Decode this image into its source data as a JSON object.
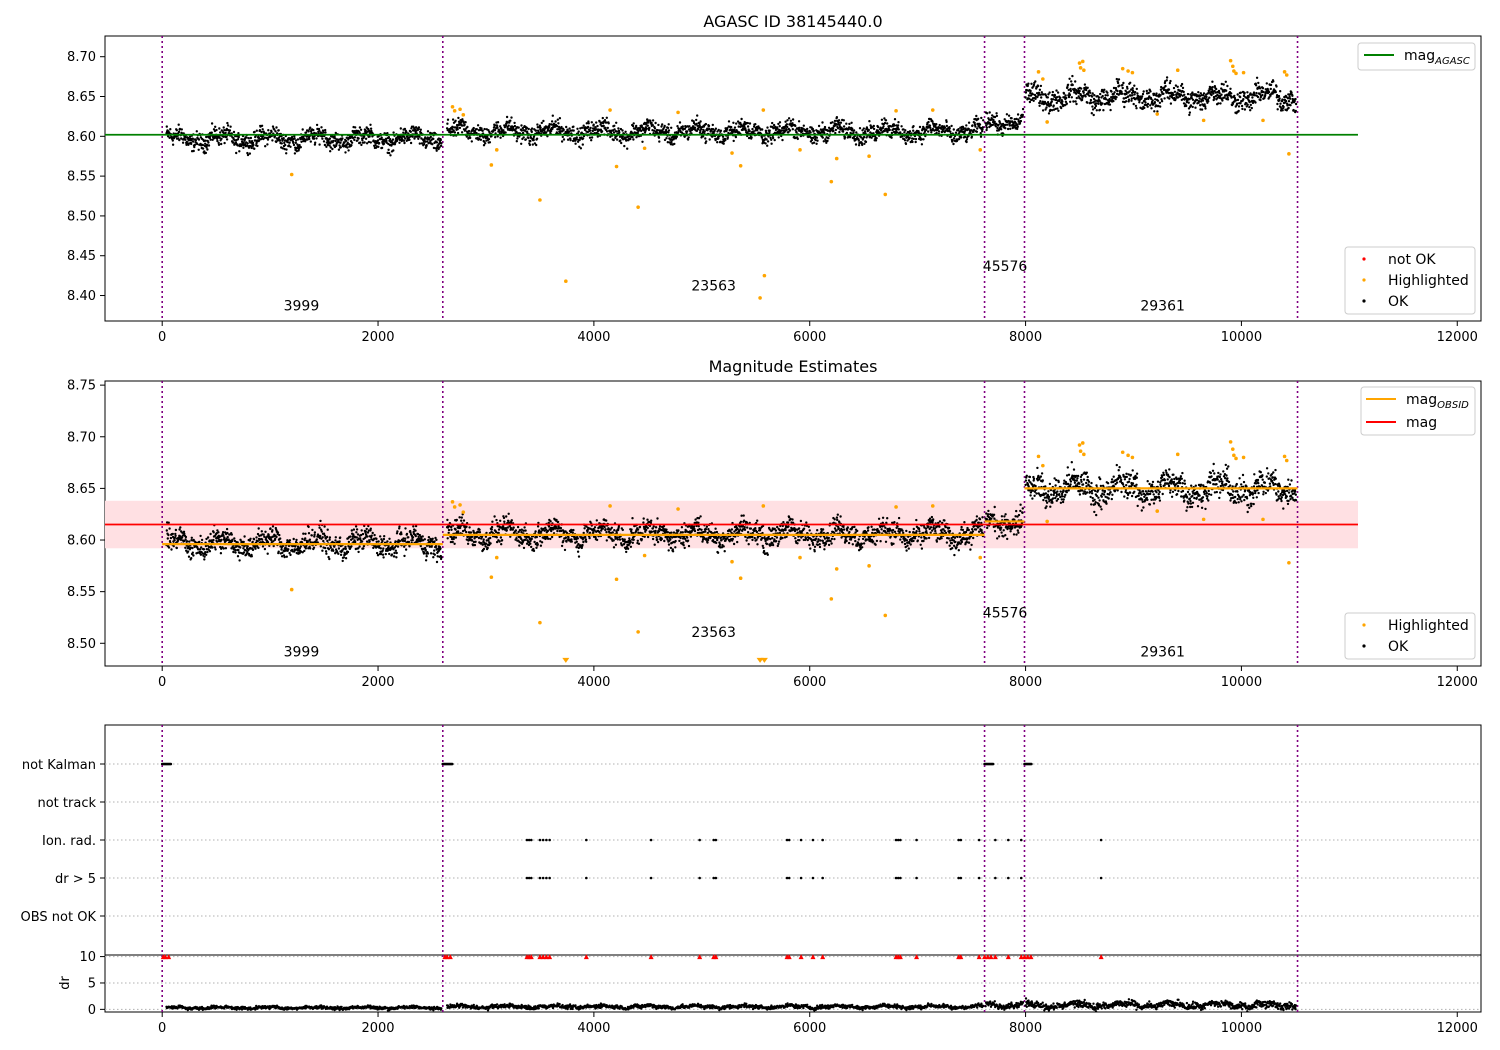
{
  "chart_data": [
    {
      "type": "scatter",
      "title": "AGASC ID 38145440.0",
      "xlim": [
        -530,
        12220
      ],
      "ylim": [
        8.368,
        8.726
      ],
      "xticks": [
        0,
        2000,
        4000,
        6000,
        8000,
        10000,
        12000
      ],
      "yticks": [
        8.4,
        8.45,
        8.5,
        8.55,
        8.6,
        8.65,
        8.7
      ],
      "ytick_labels": [
        "8.40",
        "8.45",
        "8.50",
        "8.55",
        "8.60",
        "8.65",
        "8.70"
      ],
      "obs_boundaries": [
        0,
        2600,
        7620,
        7990,
        10520
      ],
      "obs_labels": [
        {
          "text": "3999",
          "x": 1290,
          "y": 8.381
        },
        {
          "text": "23563",
          "x": 5110,
          "y": 8.406
        },
        {
          "text": "45576",
          "x": 7810,
          "y": 8.431
        },
        {
          "text": "29361",
          "x": 9270,
          "y": 8.381
        }
      ],
      "series": [
        {
          "name": "mag_AGASC",
          "kind": "hline",
          "y": 8.602,
          "x_range": [
            -530,
            11080
          ],
          "color": "#008000"
        },
        {
          "name": "OK",
          "kind": "band-scatter",
          "color": "#000000",
          "segments": [
            {
              "x": [
                40,
                2590
              ],
              "center": 8.597,
              "amplitude": 0.012
            },
            {
              "x": [
                2640,
                7610
              ],
              "center": 8.606,
              "amplitude": 0.012
            },
            {
              "x": [
                7630,
                7980
              ],
              "center": 8.618,
              "amplitude": 0.012
            },
            {
              "x": [
                8000,
                10510
              ],
              "center": 8.65,
              "amplitude": 0.015
            }
          ]
        },
        {
          "name": "Highlighted",
          "kind": "scatter",
          "color": "#ffa500",
          "points": [
            [
              1200,
              8.552
            ],
            [
              2690,
              8.637
            ],
            [
              2710,
              8.632
            ],
            [
              2760,
              8.634
            ],
            [
              2790,
              8.627
            ],
            [
              3050,
              8.564
            ],
            [
              3100,
              8.583
            ],
            [
              3500,
              8.52
            ],
            [
              3740,
              8.418
            ],
            [
              4150,
              8.633
            ],
            [
              4210,
              8.562
            ],
            [
              4410,
              8.511
            ],
            [
              4470,
              8.585
            ],
            [
              4780,
              8.63
            ],
            [
              5280,
              8.579
            ],
            [
              5360,
              8.563
            ],
            [
              5540,
              8.397
            ],
            [
              5580,
              8.425
            ],
            [
              5570,
              8.633
            ],
            [
              5910,
              8.583
            ],
            [
              6200,
              8.543
            ],
            [
              6250,
              8.572
            ],
            [
              6550,
              8.575
            ],
            [
              6700,
              8.527
            ],
            [
              6800,
              8.632
            ],
            [
              7140,
              8.633
            ],
            [
              7580,
              8.583
            ],
            [
              8120,
              8.681
            ],
            [
              8160,
              8.672
            ],
            [
              8200,
              8.618
            ],
            [
              8500,
              8.692
            ],
            [
              8510,
              8.686
            ],
            [
              8530,
              8.694
            ],
            [
              8540,
              8.683
            ],
            [
              8900,
              8.685
            ],
            [
              8950,
              8.682
            ],
            [
              8990,
              8.68
            ],
            [
              9220,
              8.628
            ],
            [
              9410,
              8.683
            ],
            [
              9650,
              8.62
            ],
            [
              9900,
              8.695
            ],
            [
              9920,
              8.688
            ],
            [
              9930,
              8.682
            ],
            [
              9950,
              8.679
            ],
            [
              10020,
              8.68
            ],
            [
              10200,
              8.62
            ],
            [
              10400,
              8.681
            ],
            [
              10420,
              8.677
            ],
            [
              10440,
              8.578
            ]
          ]
        },
        {
          "name": "not OK",
          "kind": "scatter",
          "color": "#ff0000",
          "points": []
        }
      ],
      "legend": {
        "top_right": [
          "mag_AGASC"
        ],
        "bottom_right": [
          "not OK",
          "Highlighted",
          "OK"
        ]
      }
    },
    {
      "type": "scatter",
      "title": "Magnitude Estimates",
      "xlim": [
        -530,
        12220
      ],
      "ylim": [
        8.478,
        8.754
      ],
      "xticks": [
        0,
        2000,
        4000,
        6000,
        8000,
        10000,
        12000
      ],
      "yticks": [
        8.5,
        8.55,
        8.6,
        8.65,
        8.7,
        8.75
      ],
      "ytick_labels": [
        "8.50",
        "8.55",
        "8.60",
        "8.65",
        "8.70",
        "8.75"
      ],
      "obs_boundaries": [
        0,
        2600,
        7620,
        7990,
        10520
      ],
      "obs_labels": [
        {
          "text": "3999",
          "x": 1290,
          "y": 8.487
        },
        {
          "text": "23563",
          "x": 5110,
          "y": 8.506
        },
        {
          "text": "45576",
          "x": 7810,
          "y": 8.525
        },
        {
          "text": "29361",
          "x": 9270,
          "y": 8.487
        }
      ],
      "mag_band": {
        "low": 8.592,
        "high": 8.638,
        "x_range": [
          -530,
          11080
        ],
        "color": "#ffe0e3"
      },
      "series": [
        {
          "name": "mag",
          "kind": "hline",
          "y": 8.615,
          "x_range": [
            -530,
            11080
          ],
          "color": "#ff0000"
        },
        {
          "name": "mag_OBSID",
          "kind": "steps",
          "color": "#ffa500",
          "steps": [
            {
              "x": [
                0,
                2600
              ],
              "y": 8.596
            },
            {
              "x": [
                2600,
                7620
              ],
              "y": 8.605
            },
            {
              "x": [
                7620,
                7990
              ],
              "y": 8.618
            },
            {
              "x": [
                7990,
                10520
              ],
              "y": 8.65
            }
          ]
        },
        {
          "name": "OK",
          "kind": "band-scatter",
          "color": "#000000",
          "segments": [
            {
              "x": [
                40,
                2590
              ],
              "center": 8.597,
              "amplitude": 0.012
            },
            {
              "x": [
                2640,
                7610
              ],
              "center": 8.606,
              "amplitude": 0.012
            },
            {
              "x": [
                7630,
                7980
              ],
              "center": 8.618,
              "amplitude": 0.012
            },
            {
              "x": [
                8000,
                10510
              ],
              "center": 8.65,
              "amplitude": 0.015
            }
          ]
        },
        {
          "name": "Highlighted",
          "kind": "scatter",
          "color": "#ffa500",
          "points": [
            [
              1200,
              8.552
            ],
            [
              2690,
              8.637
            ],
            [
              2710,
              8.632
            ],
            [
              2760,
              8.634
            ],
            [
              2790,
              8.627
            ],
            [
              3050,
              8.564
            ],
            [
              3100,
              8.583
            ],
            [
              3500,
              8.52
            ],
            [
              4150,
              8.633
            ],
            [
              4210,
              8.562
            ],
            [
              4410,
              8.511
            ],
            [
              4470,
              8.585
            ],
            [
              4780,
              8.63
            ],
            [
              5280,
              8.579
            ],
            [
              5360,
              8.563
            ],
            [
              5570,
              8.633
            ],
            [
              5910,
              8.583
            ],
            [
              6200,
              8.543
            ],
            [
              6250,
              8.572
            ],
            [
              6550,
              8.575
            ],
            [
              6700,
              8.527
            ],
            [
              6800,
              8.632
            ],
            [
              7140,
              8.633
            ],
            [
              7580,
              8.583
            ],
            [
              8120,
              8.681
            ],
            [
              8160,
              8.672
            ],
            [
              8200,
              8.618
            ],
            [
              8500,
              8.692
            ],
            [
              8510,
              8.686
            ],
            [
              8530,
              8.694
            ],
            [
              8540,
              8.683
            ],
            [
              8900,
              8.685
            ],
            [
              8950,
              8.682
            ],
            [
              8990,
              8.68
            ],
            [
              9220,
              8.628
            ],
            [
              9410,
              8.683
            ],
            [
              9650,
              8.62
            ],
            [
              9900,
              8.695
            ],
            [
              9920,
              8.688
            ],
            [
              9930,
              8.682
            ],
            [
              9950,
              8.679
            ],
            [
              10020,
              8.68
            ],
            [
              10200,
              8.62
            ],
            [
              10400,
              8.681
            ],
            [
              10420,
              8.677
            ],
            [
              10440,
              8.578
            ]
          ]
        },
        {
          "name": "Highlighted (off-scale)",
          "kind": "markers-down",
          "color": "#ffa500",
          "points": [
            [
              3740,
              8.48
            ],
            [
              5540,
              8.48
            ],
            [
              5580,
              8.48
            ]
          ]
        }
      ],
      "legend": {
        "top_right": [
          "mag_OBSID",
          "mag"
        ],
        "bottom_right": [
          "Highlighted",
          "OK"
        ]
      }
    },
    {
      "type": "scatter",
      "title": "",
      "xlim": [
        -530,
        12220
      ],
      "categories": [
        "not Kalman",
        "not track",
        "Ion. rad.",
        "dr > 5",
        "OBS not OK"
      ],
      "obs_boundaries": [
        0,
        2600,
        7620,
        7990,
        10520
      ],
      "flags": {
        "not Kalman": [
          [
            0,
            80
          ],
          [
            2600,
            2690
          ],
          [
            7620,
            7700
          ],
          [
            7990,
            8060
          ]
        ],
        "not track": [],
        "Ion. rad.": [
          3380,
          3400,
          3420,
          3500,
          3530,
          3560,
          3590,
          3930,
          4530,
          4980,
          5110,
          5130,
          5790,
          5810,
          5920,
          6030,
          6120,
          6800,
          6820,
          6840,
          6990,
          7380,
          7400,
          7570,
          7720,
          7840,
          7960,
          8700
        ],
        "dr > 5": [
          3380,
          3400,
          3420,
          3500,
          3530,
          3560,
          3590,
          3930,
          4530,
          4980,
          5110,
          5130,
          5790,
          5810,
          5920,
          6030,
          6120,
          6800,
          6820,
          6840,
          6990,
          7380,
          7400,
          7570,
          7720,
          7840,
          7960,
          8700
        ],
        "OBS not OK": []
      }
    },
    {
      "type": "scatter",
      "title": "",
      "ylabel": "dr",
      "xlim": [
        -530,
        12220
      ],
      "ylim": [
        -0.5,
        10.3
      ],
      "xticks": [
        0,
        2000,
        4000,
        6000,
        8000,
        10000,
        12000
      ],
      "yticks": [
        0,
        5,
        10
      ],
      "ytick_labels": [
        "0",
        "5",
        "10"
      ],
      "obs_boundaries": [
        0,
        2600,
        7620,
        7990,
        10520
      ],
      "series": [
        {
          "name": "dr",
          "kind": "band-scatter",
          "color": "#000000",
          "segments": [
            {
              "x": [
                40,
                2590
              ],
              "center": 0.3,
              "amplitude": 0.3
            },
            {
              "x": [
                2640,
                7610
              ],
              "center": 0.5,
              "amplitude": 0.4
            },
            {
              "x": [
                7630,
                7980
              ],
              "center": 0.9,
              "amplitude": 0.6
            },
            {
              "x": [
                8000,
                10510
              ],
              "center": 0.8,
              "amplitude": 0.7
            }
          ]
        },
        {
          "name": "dr clipped",
          "kind": "markers-up",
          "color": "#ff0000",
          "points": [
            10,
            30,
            60,
            2620,
            2640,
            2670,
            3380,
            3400,
            3420,
            3500,
            3530,
            3560,
            3590,
            3930,
            4530,
            4980,
            5110,
            5130,
            5790,
            5810,
            5920,
            6030,
            6120,
            6800,
            6820,
            6840,
            6990,
            7380,
            7400,
            7570,
            7620,
            7650,
            7680,
            7720,
            7840,
            7960,
            7990,
            8020,
            8050,
            8700
          ]
        }
      ]
    }
  ]
}
